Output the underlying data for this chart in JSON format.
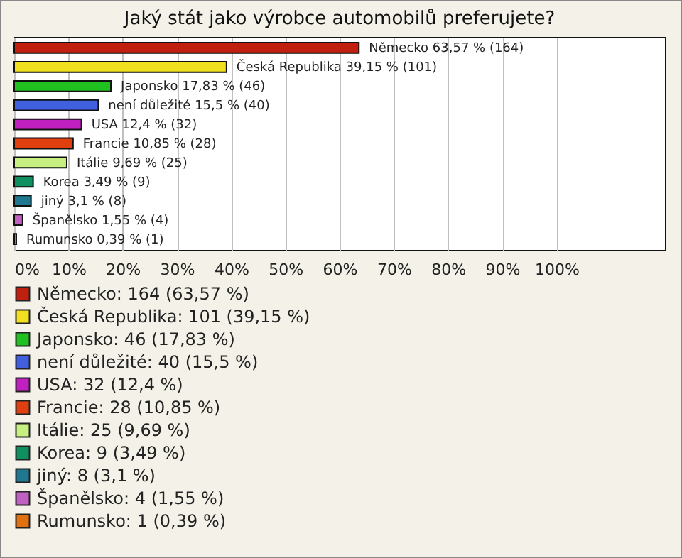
{
  "chart_data": {
    "type": "bar",
    "orientation": "horizontal",
    "title": "Jaký stát jako výrobce automobilů preferujete?",
    "categories": [
      null,
      null,
      null,
      null,
      null,
      null,
      null,
      null,
      null,
      null,
      null
    ],
    "series": [
      {
        "name": "Německo: 164 (63,57 %)",
        "color": "#c0200f",
        "values": [
          63.57,
          null,
          null,
          null,
          null,
          null,
          null,
          null,
          null,
          null,
          null
        ],
        "value_labels": [
          "Německo 63,57 % (164)",
          null,
          null,
          null,
          null,
          null,
          null,
          null,
          null,
          null,
          null
        ]
      },
      {
        "name": "Česká Republika: 101 (39,15 %)",
        "color": "#f0e020",
        "values": [
          null,
          39.15,
          null,
          null,
          null,
          null,
          null,
          null,
          null,
          null,
          null
        ],
        "value_labels": [
          null,
          "Česká Republika 39,15 % (101)",
          null,
          null,
          null,
          null,
          null,
          null,
          null,
          null,
          null
        ]
      },
      {
        "name": "Japonsko: 46 (17,83 %)",
        "color": "#20c020",
        "values": [
          null,
          null,
          17.83,
          null,
          null,
          null,
          null,
          null,
          null,
          null,
          null
        ],
        "value_labels": [
          null,
          null,
          "Japonsko 17,83 % (46)",
          null,
          null,
          null,
          null,
          null,
          null,
          null,
          null
        ]
      },
      {
        "name": "není důležité: 40 (15,5 %)",
        "color": "#4060e0",
        "values": [
          null,
          null,
          null,
          15.5,
          null,
          null,
          null,
          null,
          null,
          null,
          null
        ],
        "value_labels": [
          null,
          null,
          null,
          "není důležité 15,5 % (40)",
          null,
          null,
          null,
          null,
          null,
          null,
          null
        ]
      },
      {
        "name": "USA: 32 (12,4 %)",
        "color": "#c020c0",
        "values": [
          null,
          null,
          null,
          null,
          12.4,
          null,
          null,
          null,
          null,
          null,
          null
        ],
        "value_labels": [
          null,
          null,
          null,
          null,
          "USA 12,4 % (32)",
          null,
          null,
          null,
          null,
          null,
          null
        ]
      },
      {
        "name": "Francie: 28 (10,85 %)",
        "color": "#e04010",
        "values": [
          null,
          null,
          null,
          null,
          null,
          10.85,
          null,
          null,
          null,
          null,
          null
        ],
        "value_labels": [
          null,
          null,
          null,
          null,
          null,
          "Francie 10,85 % (28)",
          null,
          null,
          null,
          null,
          null
        ]
      },
      {
        "name": "Itálie: 25 (9,69 %)",
        "color": "#c8f080",
        "values": [
          null,
          null,
          null,
          null,
          null,
          null,
          9.69,
          null,
          null,
          null,
          null
        ],
        "value_labels": [
          null,
          null,
          null,
          null,
          null,
          null,
          "Itálie 9,69 % (25)",
          null,
          null,
          null,
          null
        ]
      },
      {
        "name": "Korea: 9 (3,49 %)",
        "color": "#109060",
        "values": [
          null,
          null,
          null,
          null,
          null,
          null,
          null,
          3.49,
          null,
          null,
          null
        ],
        "value_labels": [
          null,
          null,
          null,
          null,
          null,
          null,
          null,
          "Korea 3,49 % (9)",
          null,
          null,
          null
        ]
      },
      {
        "name": "jiný: 8 (3,1 %)",
        "color": "#207890",
        "values": [
          null,
          null,
          null,
          null,
          null,
          null,
          null,
          null,
          3.1,
          null,
          null
        ],
        "value_labels": [
          null,
          null,
          null,
          null,
          null,
          null,
          null,
          null,
          "jiný 3,1 % (8)",
          null,
          null
        ]
      },
      {
        "name": "Španělsko: 4 (1,55 %)",
        "color": "#c060c0",
        "values": [
          null,
          null,
          null,
          null,
          null,
          null,
          null,
          null,
          null,
          1.55,
          null
        ],
        "value_labels": [
          null,
          null,
          null,
          null,
          null,
          null,
          null,
          null,
          null,
          "Španělsko 1,55 % (4)",
          null
        ]
      },
      {
        "name": "Rumunsko: 1 (0,39 %)",
        "color": "#e07010",
        "values": [
          null,
          null,
          null,
          null,
          null,
          null,
          null,
          null,
          null,
          null,
          0.39
        ],
        "value_labels": [
          null,
          null,
          null,
          null,
          null,
          null,
          null,
          null,
          null,
          null,
          "Rumunsko 0,39 % (1)"
        ]
      }
    ],
    "xlim": [
      0,
      120
    ],
    "xticks": [
      {
        "value": 0,
        "label": "0%"
      },
      {
        "value": 10,
        "label": "10%"
      },
      {
        "value": 20,
        "label": "20%"
      },
      {
        "value": 30,
        "label": "30%"
      },
      {
        "value": 40,
        "label": "40%"
      },
      {
        "value": 50,
        "label": "50%"
      },
      {
        "value": 60,
        "label": "60%"
      },
      {
        "value": 70,
        "label": "70%"
      },
      {
        "value": 80,
        "label": "80%"
      },
      {
        "value": 90,
        "label": "90%"
      },
      {
        "value": 100,
        "label": "100%"
      }
    ],
    "tick_labels": "x",
    "grid": "x",
    "legend": "bottom"
  }
}
